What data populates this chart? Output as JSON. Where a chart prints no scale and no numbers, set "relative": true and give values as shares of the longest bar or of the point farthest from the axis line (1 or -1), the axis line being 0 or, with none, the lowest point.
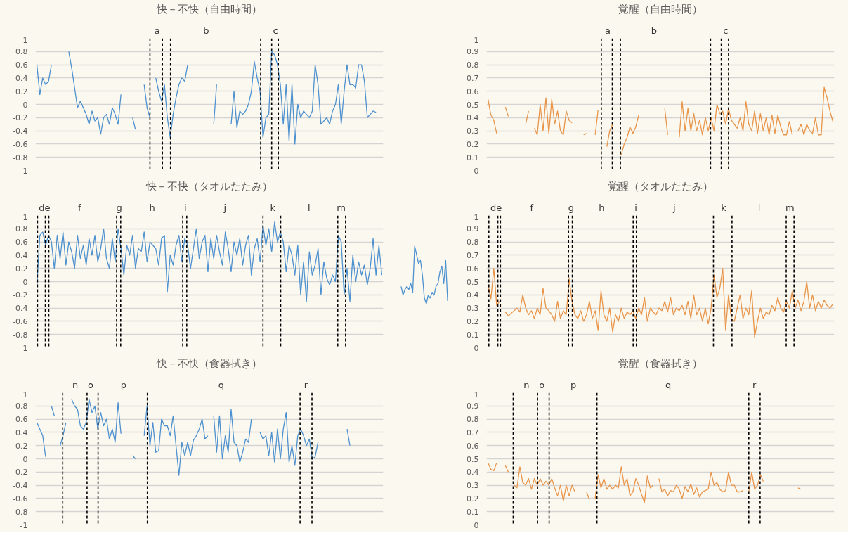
{
  "chart_data": [
    {
      "type": "line",
      "title": "快－不快（自由時間）",
      "ylim": [
        -1,
        1
      ],
      "yticks": [
        -1,
        -0.8,
        -0.6,
        -0.4,
        -0.2,
        0,
        0.2,
        0.4,
        0.6,
        0.8,
        1
      ],
      "grid": "y",
      "tick_labels": "y",
      "line_style": "solid",
      "categories": [
        null,
        null,
        null,
        null,
        null,
        null,
        null,
        null,
        null,
        null,
        null,
        null,
        null,
        null,
        null,
        null,
        null,
        null,
        null,
        null,
        null,
        null,
        null,
        null,
        null,
        null,
        null,
        null,
        null,
        null,
        null,
        null,
        null,
        null,
        null,
        null,
        null,
        null,
        null,
        null,
        null,
        null,
        null,
        null,
        null,
        null,
        null,
        null,
        null,
        null,
        null,
        null,
        null,
        null,
        null,
        null,
        null,
        null,
        null,
        null,
        null,
        null,
        null,
        null,
        null,
        null,
        null,
        null,
        null,
        null,
        null,
        null,
        null,
        null,
        null,
        null,
        null,
        null,
        null,
        null,
        null,
        null,
        null,
        null,
        null,
        null,
        null,
        null,
        null,
        null,
        null,
        null,
        null,
        null,
        null,
        null,
        null,
        null,
        null,
        null,
        null,
        null,
        null,
        null,
        null,
        null,
        null,
        null,
        null,
        null,
        null,
        null,
        null,
        null,
        null,
        null,
        null,
        null,
        null,
        null
      ],
      "series": [
        {
          "color": "#4e91cf",
          "values": [
            0.6,
            0.15,
            0.4,
            0.3,
            0.35,
            0.6,
            null,
            null,
            null,
            null,
            null,
            0.8,
            0.55,
            0.25,
            -0.05,
            0.05,
            -0.05,
            -0.15,
            -0.3,
            -0.1,
            -0.25,
            -0.2,
            -0.45,
            -0.2,
            -0.15,
            -0.3,
            -0.05,
            -0.15,
            -0.3,
            0.15,
            null,
            null,
            null,
            -0.2,
            -0.38,
            null,
            null,
            0.3,
            -0.05,
            -0.2,
            null,
            0.4,
            0.2,
            0.05,
            0.3,
            -0.2,
            -0.5,
            -0.15,
            0.1,
            0.3,
            0.4,
            0.35,
            0.6,
            null,
            null,
            null,
            null,
            null,
            null,
            null,
            null,
            -0.3,
            0.3,
            null,
            null,
            null,
            null,
            -0.3,
            0.2,
            -0.35,
            -0.1,
            -0.15,
            -0.1,
            0.0,
            0.2,
            0.65,
            0.4,
            0.2,
            -0.5,
            -0.2,
            -0.15,
            0.8,
            0.75,
            0.6,
            0.3,
            -0.3,
            0.3,
            -0.55,
            0.3,
            -0.6,
            0.0,
            -0.2,
            -0.1,
            -0.15,
            -0.2,
            -0.1,
            0.6,
            0.3,
            -0.3,
            -0.25,
            -0.2,
            -0.3,
            -0.1,
            0.0,
            0.3,
            -0.3,
            0.2,
            0.6,
            0.3,
            0.3,
            0.25,
            0.6,
            0.6,
            0.35,
            -0.2,
            -0.15,
            -0.1,
            -0.12,
            null,
            null
          ]
        }
      ],
      "annotations": [
        "a",
        "b",
        "c"
      ]
    },
    {
      "type": "line",
      "title": "覚醒（自由時間）",
      "ylim": [
        0,
        1
      ],
      "yticks": [
        0,
        0.1,
        0.2,
        0.3,
        0.4,
        0.5,
        0.6,
        0.7,
        0.8,
        0.9,
        1
      ],
      "grid": "y",
      "tick_labels": "y",
      "line_style": "solid",
      "categories": [
        null,
        null,
        null,
        null,
        null,
        null,
        null,
        null,
        null,
        null,
        null,
        null,
        null,
        null,
        null,
        null,
        null,
        null,
        null,
        null,
        null,
        null,
        null,
        null,
        null,
        null,
        null,
        null,
        null,
        null,
        null,
        null,
        null,
        null,
        null,
        null,
        null,
        null,
        null,
        null,
        null,
        null,
        null,
        null,
        null,
        null,
        null,
        null,
        null,
        null,
        null,
        null,
        null,
        null,
        null,
        null,
        null,
        null,
        null,
        null,
        null,
        null,
        null,
        null,
        null,
        null,
        null,
        null,
        null,
        null,
        null,
        null,
        null,
        null,
        null,
        null,
        null,
        null,
        null,
        null,
        null,
        null,
        null,
        null,
        null,
        null,
        null,
        null,
        null,
        null,
        null,
        null,
        null,
        null,
        null,
        null,
        null,
        null,
        null,
        null,
        null,
        null,
        null,
        null,
        null,
        null,
        null,
        null,
        null,
        null,
        null,
        null,
        null,
        null,
        null,
        null,
        null,
        null,
        null,
        null
      ],
      "series": [
        {
          "color": "#e8954a",
          "values": [
            0.54,
            0.42,
            0.38,
            0.28,
            null,
            null,
            0.48,
            0.41,
            null,
            null,
            null,
            null,
            null,
            0.35,
            0.45,
            null,
            0.32,
            0.27,
            0.5,
            0.3,
            0.55,
            0.28,
            0.54,
            0.35,
            0.45,
            0.3,
            0.27,
            0.45,
            0.38,
            0.36,
            null,
            null,
            null,
            0.27,
            0.28,
            null,
            null,
            0.27,
            0.46,
            null,
            null,
            0.18,
            0.3,
            0.35,
            null,
            null,
            0.12,
            0.2,
            0.25,
            0.33,
            0.28,
            0.33,
            0.42,
            null,
            null,
            null,
            null,
            null,
            null,
            null,
            null,
            0.47,
            0.27,
            null,
            null,
            null,
            0.25,
            0.52,
            0.3,
            0.47,
            0.3,
            0.43,
            0.3,
            0.38,
            0.27,
            0.4,
            0.3,
            0.4,
            0.3,
            0.5,
            0.43,
            0.45,
            0.35,
            0.47,
            0.38,
            0.35,
            0.32,
            0.4,
            0.3,
            0.52,
            0.35,
            0.3,
            0.45,
            0.28,
            0.43,
            0.3,
            0.4,
            0.27,
            0.42,
            0.28,
            0.42,
            0.33,
            0.27,
            0.27,
            0.37,
            0.27,
            null,
            0.3,
            0.35,
            0.27,
            0.35,
            0.3,
            0.28,
            0.4,
            0.27,
            0.27,
            0.63,
            0.55,
            0.45,
            0.37
          ]
        }
      ],
      "annotations": [
        "a",
        "b",
        "c"
      ]
    },
    {
      "type": "line",
      "title": "快－不快（タオルたたみ）",
      "ylim": [
        -1,
        1
      ],
      "yticks": [
        -1,
        -0.8,
        -0.6,
        -0.4,
        -0.2,
        0,
        0.2,
        0.4,
        0.6,
        0.8,
        1
      ],
      "grid": "y",
      "tick_labels": "y",
      "line_style": "solid",
      "categories": [
        null,
        null,
        null,
        null,
        null,
        null,
        null,
        null,
        null,
        null,
        null,
        null,
        null,
        null,
        null,
        null,
        null,
        null,
        null,
        null,
        null,
        null,
        null,
        null,
        null,
        null,
        null,
        null,
        null,
        null,
        null,
        null,
        null,
        null,
        null,
        null,
        null,
        null,
        null,
        null,
        null,
        null,
        null,
        null,
        null,
        null,
        null,
        null,
        null,
        null,
        null,
        null,
        null,
        null,
        null,
        null,
        null,
        null,
        null,
        null,
        null,
        null,
        null,
        null,
        null,
        null,
        null,
        null,
        null,
        null,
        null,
        null,
        null,
        null,
        null,
        null,
        null,
        null,
        null,
        null,
        null,
        null,
        null,
        null,
        null,
        null,
        null,
        null,
        null,
        null,
        null,
        null,
        null,
        null,
        null,
        null,
        null,
        null,
        null,
        null,
        null,
        null,
        null,
        null,
        null,
        null,
        null,
        null,
        null,
        null,
        null,
        null,
        null,
        null,
        null,
        null,
        null,
        null,
        null,
        null
      ],
      "series": [
        {
          "color": "#4e91cf",
          "values": [
            -0.05,
            0.7,
            0.75,
            0.55,
            0.7,
            0.6,
            0.2,
            0.7,
            0.35,
            0.75,
            0.25,
            0.6,
            0.45,
            0.2,
            0.7,
            0.35,
            0.55,
            0.25,
            0.65,
            0.4,
            0.7,
            0.3,
            0.5,
            0.8,
            0.35,
            0.2,
            0.65,
            0.3,
            0.8,
            0.5,
            0.1,
            0.55,
            0.4,
            0.7,
            0.2,
            0.5,
            0.45,
            0.75,
            0.3,
            0.6,
            0.55,
            0.5,
            0.25,
            0.65,
            0.7,
            -0.15,
            0.4,
            0.25,
            0.55,
            0.7,
            0.3,
            0.65,
            0.55,
            0.2,
            0.5,
            0.8,
            0.35,
            0.6,
            0.7,
            0.15,
            0.65,
            0.35,
            0.7,
            0.45,
            0.25,
            0.75,
            0.5,
            0.15,
            0.6,
            0.4,
            0.65,
            0.25,
            0.55,
            0.7,
            0.1,
            0.5,
            0.65,
            0.3,
            0.85,
            0.55,
            0.8,
            0.45,
            0.9,
            0.6,
            0.75,
            0.6,
            0.15,
            0.55,
            0.4,
            0.1,
            0.55,
            -0.2,
            0.3,
            -0.3,
            0.45,
            0.1,
            0.25,
            0.5,
            -0.2,
            0.3,
            0.05,
            -0.05,
            0.1,
            0.0,
            0.7,
            0.6,
            -0.2,
            0.2,
            -0.3,
            0.4,
            0.0,
            0.3,
            0.1,
            0.25,
            -0.05,
            0.2,
            0.65,
            0.1,
            0.55,
            0.1
          ]
        }
      ],
      "annotations": [
        "de",
        "f",
        "g",
        "h",
        "i",
        "j",
        "k",
        "l",
        "m"
      ]
    },
    {
      "type": "line",
      "relative": true,
      "tick_labels": false,
      "line_style": "solid",
      "categories": [
        null,
        null,
        null,
        null,
        null,
        null,
        null,
        null,
        null,
        null,
        null,
        null,
        null,
        null,
        null,
        null,
        null,
        null,
        null,
        null,
        null,
        null,
        null,
        null,
        null
      ],
      "series": [
        {
          "color": "#4e91cf",
          "values": [
            0.3,
            0.15,
            0.25,
            0.3,
            0.25,
            0.35,
            0.2,
            1.0,
            0.85,
            0.7,
            0.75,
            0.5,
            0.1,
            0.0,
            0.15,
            0.1,
            0.2,
            0.15,
            0.3,
            0.35,
            0.55,
            0.65,
            0.35,
            0.75,
            0.05
          ]
        }
      ]
    },
    {
      "type": "line",
      "title": "覚醒（タオルたたみ）",
      "ylim": [
        0,
        1
      ],
      "yticks": [
        0,
        0.1,
        0.2,
        0.3,
        0.4,
        0.5,
        0.6,
        0.7,
        0.8,
        0.9,
        1
      ],
      "grid": "y",
      "tick_labels": "y",
      "line_style": "solid",
      "categories": [
        null,
        null,
        null,
        null,
        null,
        null,
        null,
        null,
        null,
        null,
        null,
        null,
        null,
        null,
        null,
        null,
        null,
        null,
        null,
        null,
        null,
        null,
        null,
        null,
        null,
        null,
        null,
        null,
        null,
        null,
        null,
        null,
        null,
        null,
        null,
        null,
        null,
        null,
        null,
        null,
        null,
        null,
        null,
        null,
        null,
        null,
        null,
        null,
        null,
        null,
        null,
        null,
        null,
        null,
        null,
        null,
        null,
        null,
        null,
        null,
        null,
        null,
        null,
        null,
        null,
        null,
        null,
        null,
        null,
        null,
        null,
        null,
        null,
        null,
        null,
        null,
        null,
        null,
        null,
        null,
        null,
        null,
        null,
        null,
        null,
        null,
        null,
        null,
        null,
        null,
        null,
        null,
        null,
        null,
        null,
        null,
        null,
        null,
        null,
        null,
        null,
        null,
        null,
        null,
        null,
        null,
        null,
        null,
        null,
        null,
        null,
        null,
        null,
        null,
        null,
        null,
        null,
        null,
        null,
        null
      ],
      "series": [
        {
          "color": "#e8954a",
          "values": [
            0.48,
            0.37,
            0.6,
            0.32,
            0.35,
            null,
            0.27,
            0.24,
            0.26,
            0.28,
            0.3,
            0.27,
            0.4,
            0.3,
            0.25,
            0.28,
            0.22,
            0.3,
            0.25,
            0.45,
            0.3,
            0.28,
            0.25,
            0.2,
            0.35,
            0.22,
            0.28,
            0.25,
            0.52,
            0.35,
            0.25,
            0.22,
            0.28,
            0.2,
            0.25,
            0.35,
            0.22,
            0.28,
            0.13,
            0.43,
            0.25,
            0.2,
            0.3,
            0.12,
            0.25,
            0.2,
            0.3,
            0.22,
            0.27,
            0.25,
            0.28,
            0.22,
            0.3,
            0.25,
            0.38,
            0.2,
            0.3,
            0.27,
            0.25,
            0.3,
            0.28,
            0.35,
            0.27,
            0.38,
            0.25,
            0.3,
            0.28,
            0.32,
            0.25,
            0.35,
            0.22,
            0.4,
            0.25,
            0.3,
            0.2,
            0.3,
            0.18,
            0.3,
            0.55,
            0.38,
            0.45,
            0.6,
            0.13,
            0.4,
            0.22,
            0.2,
            0.3,
            0.4,
            0.22,
            0.3,
            0.25,
            0.43,
            0.08,
            0.2,
            0.3,
            0.22,
            0.27,
            0.25,
            0.32,
            0.28,
            0.38,
            0.3,
            0.27,
            0.35,
            0.3,
            0.43,
            0.3,
            0.36,
            0.28,
            0.35,
            0.5,
            0.3,
            0.4,
            0.28,
            0.35,
            0.3,
            0.36,
            0.32,
            0.3,
            0.33
          ]
        }
      ],
      "annotations": [
        "de",
        "f",
        "g",
        "h",
        "i",
        "j",
        "k",
        "l",
        "m"
      ]
    },
    {
      "type": "line",
      "title": "快－不快（食器拭き）",
      "ylim": [
        -1,
        1
      ],
      "yticks": [
        -1,
        -0.8,
        -0.6,
        -0.4,
        -0.2,
        0,
        0.2,
        0.4,
        0.6,
        0.8,
        1
      ],
      "grid": "y",
      "tick_labels": "y",
      "line_style": "solid",
      "categories": [
        null,
        null,
        null,
        null,
        null,
        null,
        null,
        null,
        null,
        null,
        null,
        null,
        null,
        null,
        null,
        null,
        null,
        null,
        null,
        null,
        null,
        null,
        null,
        null,
        null,
        null,
        null,
        null,
        null,
        null,
        null,
        null,
        null,
        null,
        null,
        null,
        null,
        null,
        null,
        null,
        null,
        null,
        null,
        null,
        null,
        null,
        null,
        null,
        null,
        null,
        null,
        null,
        null,
        null,
        null,
        null,
        null,
        null,
        null,
        null,
        null,
        null,
        null,
        null,
        null,
        null,
        null,
        null,
        null,
        null,
        null,
        null,
        null,
        null,
        null,
        null,
        null,
        null,
        null,
        null,
        null,
        null,
        null,
        null,
        null,
        null,
        null,
        null,
        null,
        null,
        null,
        null,
        null,
        null,
        null,
        null,
        null,
        null,
        null,
        null,
        null,
        null,
        null,
        null,
        null,
        null,
        null,
        null,
        null,
        null,
        null,
        null,
        null,
        null,
        null,
        null,
        null,
        null,
        null,
        null
      ],
      "series": [
        {
          "color": "#4e91cf",
          "values": [
            0.55,
            0.45,
            0.35,
            0.03,
            null,
            0.8,
            0.65,
            null,
            0.2,
            0.35,
            0.55,
            null,
            0.9,
            0.8,
            0.75,
            0.5,
            0.45,
            0.55,
            0.9,
            0.7,
            0.8,
            0.45,
            0.7,
            0.5,
            0.6,
            0.3,
            0.45,
            0.25,
            0.85,
            0.38,
            null,
            null,
            null,
            0.05,
            0.0,
            null,
            null,
            0.35,
            0.8,
            0.2,
            0.55,
            0.1,
            0.12,
            0.6,
            0.5,
            0.5,
            0.35,
            0.65,
            0.2,
            -0.25,
            0.25,
            0.05,
            0.25,
            0.05,
            0.28,
            0.35,
            0.45,
            0.6,
            0.3,
            0.35,
            null,
            0.65,
            0.1,
            0.65,
            0.0,
            0.35,
            0.1,
            0.75,
            0.25,
            0.2,
            -0.05,
            0.1,
            0.3,
            0.25,
            0.6,
            null,
            null,
            0.4,
            0.3,
            0.35,
            0.05,
            0.4,
            -0.05,
            0.45,
            0.0,
            0.45,
            0.7,
            -0.05,
            0.2,
            -0.1,
            0.35,
            0.45,
            0.35,
            0.2,
            0.3,
            0.0,
            0.03,
            0.25,
            null,
            null,
            null,
            null,
            null,
            null,
            null,
            null,
            null,
            0.45,
            0.2,
            null,
            null,
            null,
            null,
            null,
            null,
            null,
            null,
            null,
            null,
            null
          ]
        }
      ],
      "annotations": [
        "n",
        "o",
        "p",
        "q",
        "r"
      ]
    },
    {
      "type": "line",
      "title": "覚醒（食器拭き）",
      "ylim": [
        0,
        1
      ],
      "yticks": [
        0,
        0.1,
        0.2,
        0.3,
        0.4,
        0.5,
        0.6,
        0.7,
        0.8,
        0.9,
        1
      ],
      "grid": "y",
      "tick_labels": "y",
      "line_style": "solid",
      "categories": [
        null,
        null,
        null,
        null,
        null,
        null,
        null,
        null,
        null,
        null,
        null,
        null,
        null,
        null,
        null,
        null,
        null,
        null,
        null,
        null,
        null,
        null,
        null,
        null,
        null,
        null,
        null,
        null,
        null,
        null,
        null,
        null,
        null,
        null,
        null,
        null,
        null,
        null,
        null,
        null,
        null,
        null,
        null,
        null,
        null,
        null,
        null,
        null,
        null,
        null,
        null,
        null,
        null,
        null,
        null,
        null,
        null,
        null,
        null,
        null,
        null,
        null,
        null,
        null,
        null,
        null,
        null,
        null,
        null,
        null,
        null,
        null,
        null,
        null,
        null,
        null,
        null,
        null,
        null,
        null,
        null,
        null,
        null,
        null,
        null,
        null,
        null,
        null,
        null,
        null,
        null,
        null,
        null,
        null,
        null,
        null,
        null,
        null,
        null,
        null,
        null,
        null,
        null,
        null,
        null,
        null,
        null,
        null,
        null,
        null,
        null,
        null,
        null,
        null,
        null,
        null,
        null,
        null,
        null,
        null
      ],
      "series": [
        {
          "color": "#e8954a",
          "values": [
            0.47,
            0.42,
            0.41,
            0.47,
            null,
            null,
            0.45,
            0.4,
            null,
            0.3,
            0.28,
            0.44,
            0.32,
            0.3,
            0.35,
            0.27,
            0.35,
            0.3,
            0.35,
            0.3,
            0.33,
            0.3,
            0.35,
            0.28,
            0.22,
            0.3,
            0.18,
            0.3,
            0.22,
            0.3,
            0.25,
            null,
            null,
            null,
            0.25,
            0.19,
            null,
            0.2,
            0.38,
            0.28,
            0.35,
            0.27,
            0.3,
            0.27,
            0.3,
            0.28,
            0.44,
            0.3,
            0.35,
            0.22,
            0.25,
            0.35,
            0.3,
            0.23,
            0.17,
            0.37,
            0.28,
            0.3,
            null,
            0.35,
            0.25,
            0.27,
            0.22,
            0.26,
            0.25,
            0.3,
            0.27,
            0.2,
            0.29,
            0.25,
            0.31,
            0.23,
            0.28,
            0.21,
            0.25,
            0.26,
            0.27,
            0.4,
            0.3,
            0.32,
            0.27,
            0.25,
            0.26,
            0.4,
            0.3,
            0.3,
            0.25,
            0.25,
            0.26,
            null,
            0.25,
            0.4,
            0.27,
            0.3,
            0.38,
            0.33,
            null,
            null,
            null,
            null,
            null,
            null,
            null,
            null,
            null,
            null,
            null,
            0.28,
            0.27,
            null,
            null,
            null,
            null,
            null,
            null,
            null,
            null,
            null,
            null,
            null
          ]
        }
      ],
      "annotations": [
        "n",
        "o",
        "p",
        "q",
        "r"
      ]
    }
  ]
}
